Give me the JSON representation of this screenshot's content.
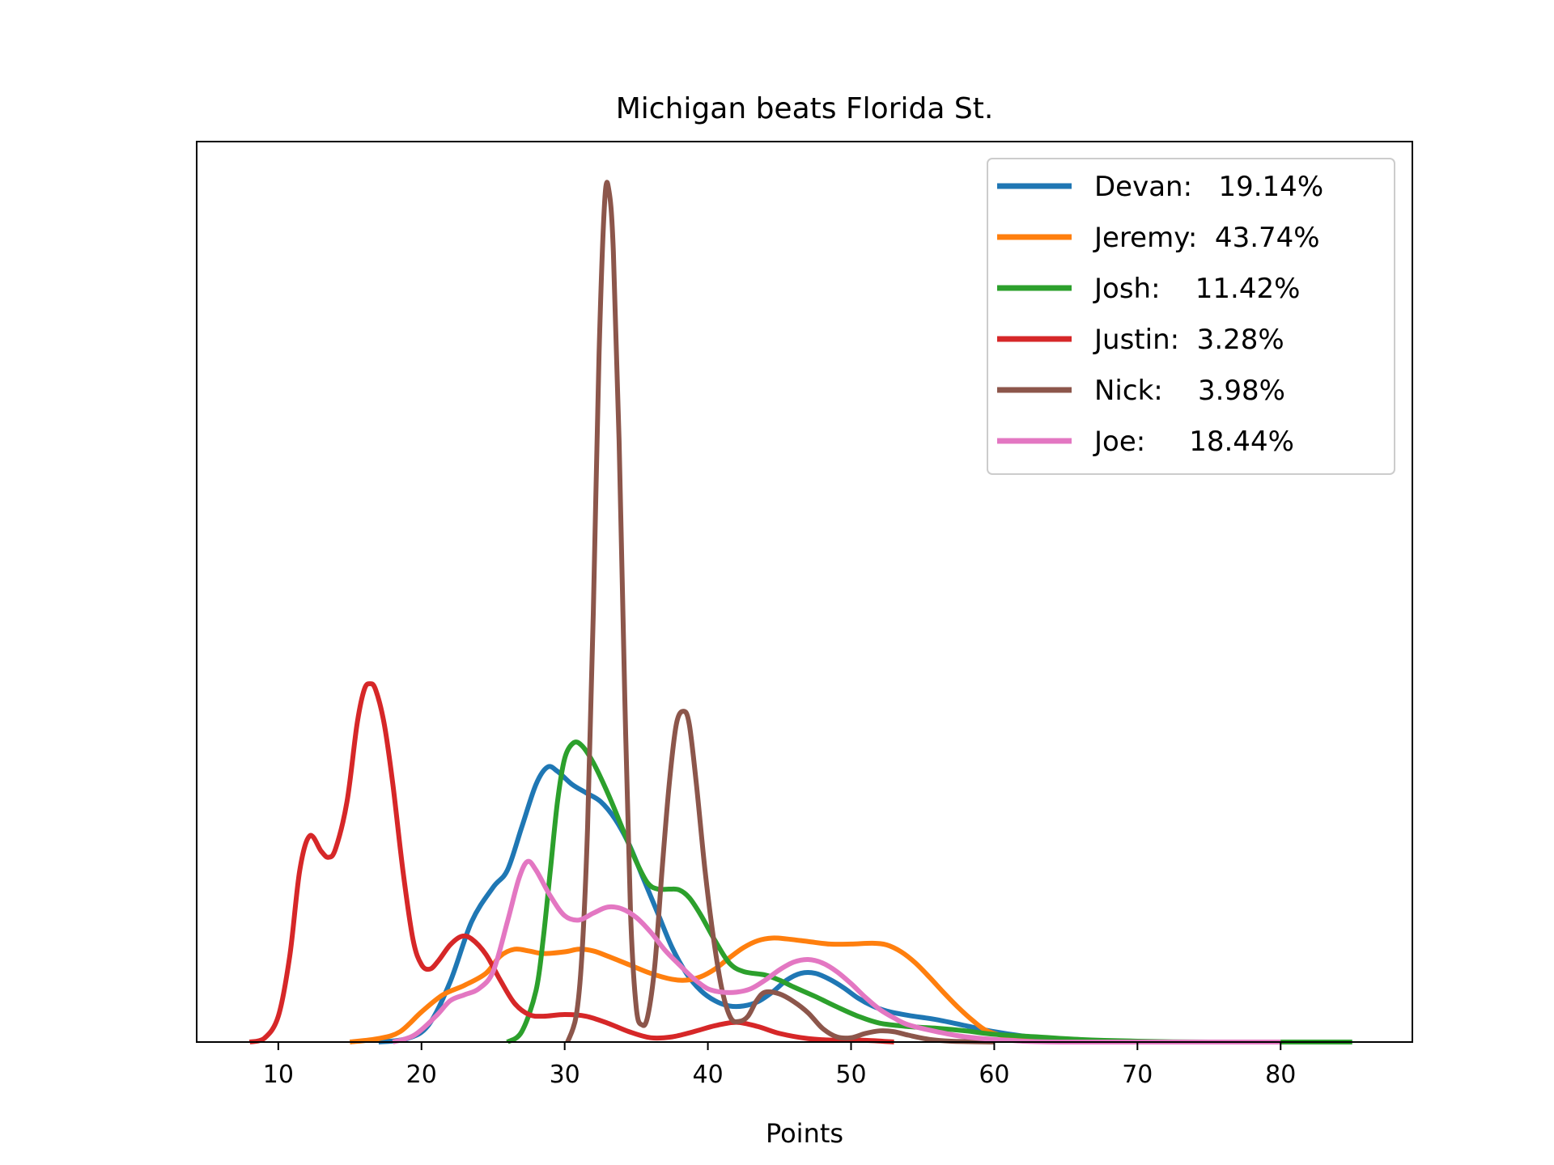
{
  "chart_data": {
    "type": "line",
    "title": "Michigan beats Florida St.",
    "xlabel": "Points",
    "ylabel": "",
    "xlim": [
      4.3,
      89.2
    ],
    "ylim": [
      0,
      1.0
    ],
    "x_ticks": [
      10,
      20,
      30,
      40,
      50,
      60,
      70,
      80
    ],
    "y_ticks_visible": false,
    "grid": false,
    "legend_position": "top-right",
    "series": [
      {
        "name": "Devan:   19.14%",
        "color": "#1f77b4",
        "points": [
          [
            17,
            0
          ],
          [
            19,
            0.004
          ],
          [
            20.5,
            0.02
          ],
          [
            22,
            0.07
          ],
          [
            23.5,
            0.14
          ],
          [
            25,
            0.18
          ],
          [
            26,
            0.2
          ],
          [
            27,
            0.25
          ],
          [
            28,
            0.3
          ],
          [
            28.8,
            0.32
          ],
          [
            29.5,
            0.315
          ],
          [
            30.5,
            0.3
          ],
          [
            31.5,
            0.29
          ],
          [
            32.5,
            0.28
          ],
          [
            33.5,
            0.26
          ],
          [
            34.5,
            0.23
          ],
          [
            35.5,
            0.19
          ],
          [
            36.5,
            0.15
          ],
          [
            37.5,
            0.11
          ],
          [
            38.5,
            0.08
          ],
          [
            39.5,
            0.06
          ],
          [
            40.5,
            0.048
          ],
          [
            41.5,
            0.042
          ],
          [
            42.5,
            0.042
          ],
          [
            43.5,
            0.047
          ],
          [
            44.5,
            0.058
          ],
          [
            45.5,
            0.072
          ],
          [
            46.5,
            0.08
          ],
          [
            47.5,
            0.08
          ],
          [
            48.5,
            0.073
          ],
          [
            49.5,
            0.063
          ],
          [
            50.5,
            0.051
          ],
          [
            51.5,
            0.042
          ],
          [
            52.5,
            0.036
          ],
          [
            54,
            0.031
          ],
          [
            56,
            0.026
          ],
          [
            58,
            0.019
          ],
          [
            60,
            0.012
          ],
          [
            62,
            0.007
          ],
          [
            64,
            0.004
          ],
          [
            67,
            0.001
          ],
          [
            70,
            0
          ]
        ]
      },
      {
        "name": "Jeremy:  43.74%",
        "color": "#ff7f0e",
        "points": [
          [
            15,
            0
          ],
          [
            17,
            0.004
          ],
          [
            18.5,
            0.012
          ],
          [
            20,
            0.035
          ],
          [
            21.5,
            0.055
          ],
          [
            23,
            0.066
          ],
          [
            24.5,
            0.08
          ],
          [
            25.5,
            0.1
          ],
          [
            26.5,
            0.108
          ],
          [
            27.5,
            0.106
          ],
          [
            28.5,
            0.103
          ],
          [
            30,
            0.105
          ],
          [
            31,
            0.108
          ],
          [
            32,
            0.106
          ],
          [
            33,
            0.1
          ],
          [
            34.5,
            0.09
          ],
          [
            36,
            0.08
          ],
          [
            37.5,
            0.073
          ],
          [
            38.5,
            0.072
          ],
          [
            39.5,
            0.076
          ],
          [
            40.5,
            0.085
          ],
          [
            41.5,
            0.098
          ],
          [
            42.5,
            0.11
          ],
          [
            43.5,
            0.118
          ],
          [
            44.5,
            0.121
          ],
          [
            45.5,
            0.12
          ],
          [
            47,
            0.117
          ],
          [
            48.5,
            0.114
          ],
          [
            50,
            0.114
          ],
          [
            51.5,
            0.115
          ],
          [
            52.5,
            0.113
          ],
          [
            53.5,
            0.105
          ],
          [
            54.5,
            0.092
          ],
          [
            55.5,
            0.075
          ],
          [
            56.5,
            0.057
          ],
          [
            57.5,
            0.04
          ],
          [
            58.5,
            0.025
          ],
          [
            59.5,
            0.013
          ],
          [
            61,
            0.006
          ],
          [
            63,
            0.002
          ],
          [
            66,
            0.001
          ],
          [
            70,
            0
          ]
        ]
      },
      {
        "name": "Josh:    11.42%",
        "color": "#2ca02c",
        "points": [
          [
            26,
            0
          ],
          [
            27,
            0.012
          ],
          [
            28,
            0.06
          ],
          [
            28.5,
            0.12
          ],
          [
            29,
            0.2
          ],
          [
            29.5,
            0.28
          ],
          [
            30,
            0.33
          ],
          [
            30.6,
            0.348
          ],
          [
            31.2,
            0.345
          ],
          [
            32,
            0.325
          ],
          [
            33,
            0.29
          ],
          [
            34,
            0.25
          ],
          [
            35,
            0.21
          ],
          [
            35.8,
            0.185
          ],
          [
            36.5,
            0.178
          ],
          [
            37.3,
            0.178
          ],
          [
            38,
            0.177
          ],
          [
            38.7,
            0.168
          ],
          [
            39.5,
            0.148
          ],
          [
            40.5,
            0.118
          ],
          [
            41.5,
            0.092
          ],
          [
            42.5,
            0.082
          ],
          [
            44,
            0.078
          ],
          [
            45,
            0.072
          ],
          [
            46,
            0.064
          ],
          [
            47.5,
            0.053
          ],
          [
            49,
            0.041
          ],
          [
            50.5,
            0.03
          ],
          [
            52,
            0.022
          ],
          [
            54,
            0.018
          ],
          [
            56,
            0.016
          ],
          [
            58,
            0.013
          ],
          [
            60,
            0.009
          ],
          [
            63,
            0.006
          ],
          [
            66,
            0.003
          ],
          [
            70,
            0.001
          ],
          [
            75,
            0
          ],
          [
            85,
            0
          ]
        ]
      },
      {
        "name": "Justin:  3.28%",
        "color": "#d62728",
        "points": [
          [
            8,
            0
          ],
          [
            9,
            0.004
          ],
          [
            10,
            0.03
          ],
          [
            10.8,
            0.1
          ],
          [
            11.5,
            0.2
          ],
          [
            12.2,
            0.24
          ],
          [
            13,
            0.222
          ],
          [
            13.5,
            0.215
          ],
          [
            14,
            0.225
          ],
          [
            14.8,
            0.28
          ],
          [
            15.5,
            0.37
          ],
          [
            16,
            0.41
          ],
          [
            16.4,
            0.417
          ],
          [
            16.8,
            0.41
          ],
          [
            17.4,
            0.37
          ],
          [
            18,
            0.3
          ],
          [
            18.7,
            0.2
          ],
          [
            19.4,
            0.12
          ],
          [
            20,
            0.09
          ],
          [
            20.6,
            0.085
          ],
          [
            21.2,
            0.095
          ],
          [
            22,
            0.113
          ],
          [
            22.8,
            0.123
          ],
          [
            23.5,
            0.12
          ],
          [
            24.5,
            0.102
          ],
          [
            25.5,
            0.072
          ],
          [
            26.5,
            0.045
          ],
          [
            27.5,
            0.032
          ],
          [
            28.5,
            0.03
          ],
          [
            30,
            0.032
          ],
          [
            31.5,
            0.03
          ],
          [
            33,
            0.022
          ],
          [
            34.5,
            0.012
          ],
          [
            36,
            0.005
          ],
          [
            37.5,
            0.006
          ],
          [
            39,
            0.012
          ],
          [
            40.5,
            0.019
          ],
          [
            42,
            0.023
          ],
          [
            43.5,
            0.018
          ],
          [
            45,
            0.01
          ],
          [
            47,
            0.004
          ],
          [
            49,
            0.002
          ],
          [
            51,
            0.002
          ],
          [
            53,
            0
          ]
        ]
      },
      {
        "name": "Nick:    3.98%",
        "color": "#8c564b",
        "points": [
          [
            30.2,
            0
          ],
          [
            30.8,
            0.03
          ],
          [
            31.2,
            0.1
          ],
          [
            31.6,
            0.25
          ],
          [
            32,
            0.5
          ],
          [
            32.4,
            0.8
          ],
          [
            32.8,
            0.98
          ],
          [
            33.1,
            0.99
          ],
          [
            33.4,
            0.92
          ],
          [
            33.8,
            0.7
          ],
          [
            34.2,
            0.4
          ],
          [
            34.6,
            0.15
          ],
          [
            35,
            0.04
          ],
          [
            35.4,
            0.02
          ],
          [
            35.8,
            0.03
          ],
          [
            36.3,
            0.09
          ],
          [
            36.8,
            0.2
          ],
          [
            37.3,
            0.3
          ],
          [
            37.8,
            0.37
          ],
          [
            38.3,
            0.385
          ],
          [
            38.7,
            0.37
          ],
          [
            39.2,
            0.3
          ],
          [
            39.8,
            0.2
          ],
          [
            40.4,
            0.12
          ],
          [
            41,
            0.06
          ],
          [
            41.6,
            0.028
          ],
          [
            42.2,
            0.024
          ],
          [
            42.8,
            0.03
          ],
          [
            43.4,
            0.048
          ],
          [
            44,
            0.058
          ],
          [
            45,
            0.056
          ],
          [
            46,
            0.047
          ],
          [
            47,
            0.034
          ],
          [
            48,
            0.016
          ],
          [
            49,
            0.006
          ],
          [
            50,
            0.005
          ],
          [
            51,
            0.01
          ],
          [
            52,
            0.013
          ],
          [
            53,
            0.012
          ],
          [
            54,
            0.008
          ],
          [
            55.5,
            0.003
          ],
          [
            57,
            0.001
          ],
          [
            60,
            0
          ]
        ]
      },
      {
        "name": "Joe:     18.44%",
        "color": "#e377c2",
        "points": [
          [
            18,
            0
          ],
          [
            19.5,
            0.008
          ],
          [
            21,
            0.03
          ],
          [
            22,
            0.048
          ],
          [
            23,
            0.055
          ],
          [
            24,
            0.062
          ],
          [
            25,
            0.082
          ],
          [
            26,
            0.14
          ],
          [
            26.8,
            0.19
          ],
          [
            27.4,
            0.21
          ],
          [
            28,
            0.2
          ],
          [
            29,
            0.17
          ],
          [
            30,
            0.147
          ],
          [
            31,
            0.142
          ],
          [
            32,
            0.15
          ],
          [
            33,
            0.157
          ],
          [
            34,
            0.155
          ],
          [
            35,
            0.145
          ],
          [
            36,
            0.128
          ],
          [
            37,
            0.107
          ],
          [
            38,
            0.09
          ],
          [
            39,
            0.074
          ],
          [
            40,
            0.062
          ],
          [
            41,
            0.058
          ],
          [
            42,
            0.058
          ],
          [
            43,
            0.062
          ],
          [
            44,
            0.072
          ],
          [
            45,
            0.084
          ],
          [
            46,
            0.093
          ],
          [
            47,
            0.096
          ],
          [
            48,
            0.092
          ],
          [
            49,
            0.082
          ],
          [
            50,
            0.068
          ],
          [
            51,
            0.052
          ],
          [
            52,
            0.038
          ],
          [
            53,
            0.028
          ],
          [
            54,
            0.02
          ],
          [
            56,
            0.012
          ],
          [
            58,
            0.006
          ],
          [
            61,
            0.002
          ],
          [
            65,
            0
          ],
          [
            80,
            0
          ]
        ]
      }
    ]
  }
}
